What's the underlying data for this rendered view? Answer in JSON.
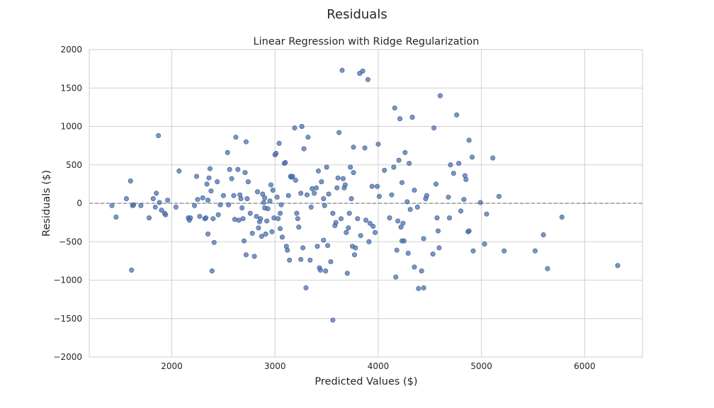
{
  "figure": {
    "suptitle": "Residuals"
  },
  "chart_data": {
    "type": "scatter",
    "title": "Linear Regression with Ridge Regularization",
    "xlabel": "Predicted Values ($)",
    "ylabel": "Residuals ($)",
    "xlim": [
      1200,
      6560
    ],
    "ylim": [
      -2000,
      2000
    ],
    "xticks": [
      2000,
      3000,
      4000,
      5000,
      6000
    ],
    "yticks": [
      -2000,
      -1500,
      -1000,
      -500,
      0,
      500,
      1000,
      1500,
      2000
    ],
    "grid": true,
    "reference_line": {
      "y": 0,
      "style": "dashed",
      "color": "#808080"
    },
    "marker_color": "#4c72b0",
    "points": [
      [
        1420,
        -30
      ],
      [
        1460,
        -180
      ],
      [
        1560,
        60
      ],
      [
        1600,
        290
      ],
      [
        1610,
        -870
      ],
      [
        1620,
        -30
      ],
      [
        1630,
        -20
      ],
      [
        1700,
        -30
      ],
      [
        1780,
        -190
      ],
      [
        1820,
        60
      ],
      [
        1840,
        -50
      ],
      [
        1850,
        130
      ],
      [
        1870,
        880
      ],
      [
        1880,
        10
      ],
      [
        1900,
        -90
      ],
      [
        1930,
        -130
      ],
      [
        1940,
        -150
      ],
      [
        1960,
        40
      ],
      [
        2040,
        -50
      ],
      [
        2070,
        420
      ],
      [
        2160,
        -190
      ],
      [
        2170,
        -220
      ],
      [
        2180,
        -190
      ],
      [
        2220,
        -30
      ],
      [
        2240,
        350
      ],
      [
        2250,
        50
      ],
      [
        2270,
        -170
      ],
      [
        2300,
        70
      ],
      [
        2320,
        -200
      ],
      [
        2330,
        -190
      ],
      [
        2340,
        250
      ],
      [
        2350,
        -400
      ],
      [
        2360,
        330
      ],
      [
        2370,
        450
      ],
      [
        2380,
        160
      ],
      [
        2390,
        -880
      ],
      [
        2400,
        -200
      ],
      [
        2410,
        -510
      ],
      [
        2440,
        280
      ],
      [
        2450,
        -150
      ],
      [
        2470,
        -20
      ],
      [
        2500,
        100
      ],
      [
        2540,
        660
      ],
      [
        2560,
        440
      ],
      [
        2600,
        100
      ],
      [
        2610,
        -210
      ],
      [
        2620,
        860
      ],
      [
        2640,
        440
      ],
      [
        2650,
        -220
      ],
      [
        2660,
        110
      ],
      [
        2670,
        60
      ],
      [
        2690,
        -200
      ],
      [
        2700,
        -490
      ],
      [
        2710,
        400
      ],
      [
        2720,
        800
      ],
      [
        2720,
        -670
      ],
      [
        2730,
        60
      ],
      [
        2740,
        280
      ],
      [
        2760,
        -130
      ],
      [
        2780,
        -390
      ],
      [
        2800,
        -690
      ],
      [
        2820,
        -170
      ],
      [
        2830,
        150
      ],
      [
        2840,
        -320
      ],
      [
        2850,
        -240
      ],
      [
        2860,
        -200
      ],
      [
        2870,
        -430
      ],
      [
        2880,
        120
      ],
      [
        2890,
        10
      ],
      [
        2900,
        -60
      ],
      [
        2910,
        -400
      ],
      [
        2920,
        -230
      ],
      [
        2930,
        -70
      ],
      [
        2950,
        30
      ],
      [
        2960,
        240
      ],
      [
        2970,
        -370
      ],
      [
        2980,
        170
      ],
      [
        2990,
        -190
      ],
      [
        3000,
        630
      ],
      [
        3010,
        650
      ],
      [
        3020,
        80
      ],
      [
        3030,
        -200
      ],
      [
        3040,
        780
      ],
      [
        3050,
        -130
      ],
      [
        3060,
        -20
      ],
      [
        3070,
        -440
      ],
      [
        3090,
        520
      ],
      [
        3100,
        530
      ],
      [
        3110,
        -560
      ],
      [
        3120,
        -610
      ],
      [
        3140,
        -740
      ],
      [
        3150,
        350
      ],
      [
        3160,
        340
      ],
      [
        3170,
        350
      ],
      [
        3190,
        980
      ],
      [
        3200,
        300
      ],
      [
        3210,
        -130
      ],
      [
        3220,
        -200
      ],
      [
        3230,
        -310
      ],
      [
        3250,
        -730
      ],
      [
        3260,
        1000
      ],
      [
        3270,
        -580
      ],
      [
        3280,
        710
      ],
      [
        3300,
        -1100
      ],
      [
        3310,
        110
      ],
      [
        3320,
        860
      ],
      [
        3340,
        -740
      ],
      [
        3350,
        -50
      ],
      [
        3360,
        190
      ],
      [
        3380,
        130
      ],
      [
        3400,
        200
      ],
      [
        3410,
        -560
      ],
      [
        3420,
        420
      ],
      [
        3430,
        -840
      ],
      [
        3440,
        -870
      ],
      [
        3450,
        280
      ],
      [
        3470,
        -480
      ],
      [
        3480,
        -30
      ],
      [
        3490,
        -880
      ],
      [
        3500,
        470
      ],
      [
        3510,
        -550
      ],
      [
        3520,
        120
      ],
      [
        3540,
        -760
      ],
      [
        3560,
        -1520
      ],
      [
        3580,
        -290
      ],
      [
        3590,
        -250
      ],
      [
        3600,
        200
      ],
      [
        3610,
        330
      ],
      [
        3620,
        920
      ],
      [
        3640,
        -200
      ],
      [
        3650,
        1730
      ],
      [
        3660,
        320
      ],
      [
        3670,
        200
      ],
      [
        3680,
        240
      ],
      [
        3690,
        -380
      ],
      [
        3700,
        -910
      ],
      [
        3710,
        -320
      ],
      [
        3720,
        -130
      ],
      [
        3740,
        60
      ],
      [
        3750,
        -560
      ],
      [
        3760,
        730
      ],
      [
        3770,
        -670
      ],
      [
        3780,
        -580
      ],
      [
        3800,
        -200
      ],
      [
        3820,
        1690
      ],
      [
        3830,
        -420
      ],
      [
        3850,
        1720
      ],
      [
        3870,
        720
      ],
      [
        3880,
        -220
      ],
      [
        3900,
        1610
      ],
      [
        3920,
        -260
      ],
      [
        3940,
        220
      ],
      [
        3950,
        -300
      ],
      [
        3970,
        -380
      ],
      [
        3990,
        220
      ],
      [
        4000,
        770
      ],
      [
        4010,
        90
      ],
      [
        4130,
        110
      ],
      [
        4150,
        470
      ],
      [
        4160,
        1240
      ],
      [
        4170,
        -960
      ],
      [
        4180,
        -610
      ],
      [
        4190,
        -230
      ],
      [
        4200,
        560
      ],
      [
        4210,
        1100
      ],
      [
        4220,
        -310
      ],
      [
        4230,
        270
      ],
      [
        4240,
        -260
      ],
      [
        4250,
        -490
      ],
      [
        4260,
        660
      ],
      [
        4280,
        20
      ],
      [
        4290,
        -650
      ],
      [
        4300,
        520
      ],
      [
        4310,
        -80
      ],
      [
        4330,
        1120
      ],
      [
        4350,
        -830
      ],
      [
        4380,
        -50
      ],
      [
        4390,
        -1110
      ],
      [
        4420,
        -880
      ],
      [
        4440,
        -460
      ],
      [
        4460,
        60
      ],
      [
        4470,
        100
      ],
      [
        4530,
        -660
      ],
      [
        4540,
        980
      ],
      [
        4560,
        250
      ],
      [
        4570,
        -190
      ],
      [
        4580,
        -360
      ],
      [
        4590,
        -580
      ],
      [
        4600,
        1400
      ],
      [
        4680,
        80
      ],
      [
        4690,
        -190
      ],
      [
        4700,
        500
      ],
      [
        4730,
        390
      ],
      [
        4760,
        1150
      ],
      [
        4780,
        520
      ],
      [
        4800,
        -100
      ],
      [
        4830,
        50
      ],
      [
        4840,
        360
      ],
      [
        4850,
        310
      ],
      [
        4870,
        -370
      ],
      [
        4880,
        820
      ],
      [
        4880,
        -360
      ],
      [
        4910,
        600
      ],
      [
        4920,
        -620
      ],
      [
        4990,
        10
      ],
      [
        5030,
        -530
      ],
      [
        5050,
        -140
      ],
      [
        5110,
        590
      ],
      [
        5170,
        90
      ],
      [
        5220,
        -620
      ],
      [
        5520,
        -620
      ],
      [
        5600,
        -410
      ],
      [
        5640,
        -850
      ],
      [
        5780,
        -180
      ],
      [
        6320,
        -810
      ],
      [
        2350,
        40
      ],
      [
        2550,
        -20
      ],
      [
        2580,
        320
      ],
      [
        2680,
        -60
      ],
      [
        2900,
        70
      ],
      [
        3050,
        -330
      ],
      [
        3130,
        100
      ],
      [
        3250,
        130
      ],
      [
        3470,
        60
      ],
      [
        3560,
        -130
      ],
      [
        3730,
        470
      ],
      [
        3760,
        400
      ],
      [
        3910,
        -500
      ],
      [
        4060,
        430
      ],
      [
        4110,
        -190
      ],
      [
        4230,
        -490
      ],
      [
        4350,
        170
      ],
      [
        4440,
        -1100
      ]
    ]
  }
}
